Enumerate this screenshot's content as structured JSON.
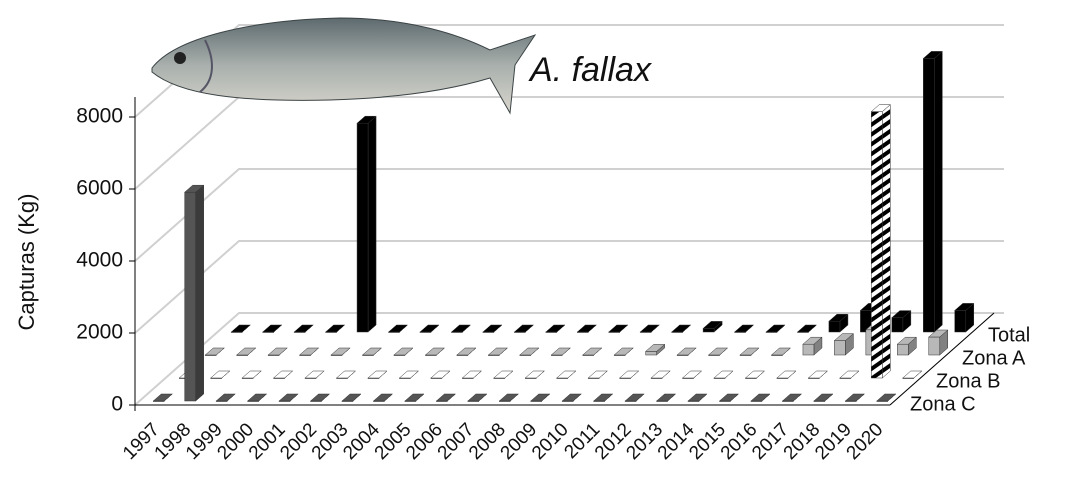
{
  "chart_data": {
    "type": "bar3d",
    "title": "A. fallax",
    "y_label": "Capturas (Kg)",
    "categories": [
      "1997",
      "1998",
      "1999",
      "2000",
      "2001",
      "2002",
      "2003",
      "2004",
      "2005",
      "2006",
      "2007",
      "2008",
      "2009",
      "2010",
      "2011",
      "2012",
      "2013",
      "2014",
      "2015",
      "2016",
      "2017",
      "2018",
      "2019",
      "2020"
    ],
    "series": [
      {
        "name": "Zona C",
        "color": "#555555",
        "values": [
          0,
          5800,
          0,
          0,
          0,
          0,
          0,
          0,
          0,
          0,
          0,
          0,
          0,
          0,
          0,
          0,
          0,
          0,
          0,
          0,
          0,
          0,
          0,
          0
        ]
      },
      {
        "name": "Zona B",
        "color": "#ffffff",
        "hatch": true,
        "values": [
          0,
          0,
          0,
          0,
          0,
          0,
          0,
          0,
          0,
          0,
          0,
          0,
          0,
          0,
          0,
          0,
          0,
          0,
          0,
          0,
          0,
          0,
          7400,
          0
        ]
      },
      {
        "name": "Zona A",
        "color": "#b8b8b8",
        "values": [
          0,
          0,
          0,
          0,
          0,
          0,
          0,
          0,
          0,
          0,
          0,
          0,
          0,
          0,
          100,
          0,
          0,
          0,
          0,
          300,
          400,
          700,
          300,
          500
        ]
      },
      {
        "name": "Total",
        "color": "#000000",
        "values": [
          0,
          0,
          0,
          0,
          5800,
          0,
          0,
          0,
          0,
          0,
          0,
          0,
          0,
          0,
          0,
          100,
          0,
          0,
          0,
          300,
          600,
          400,
          7600,
          600
        ]
      }
    ],
    "ylim": [
      0,
      8000
    ],
    "yticks": [
      0,
      2000,
      4000,
      6000,
      8000
    ],
    "grid": true
  }
}
